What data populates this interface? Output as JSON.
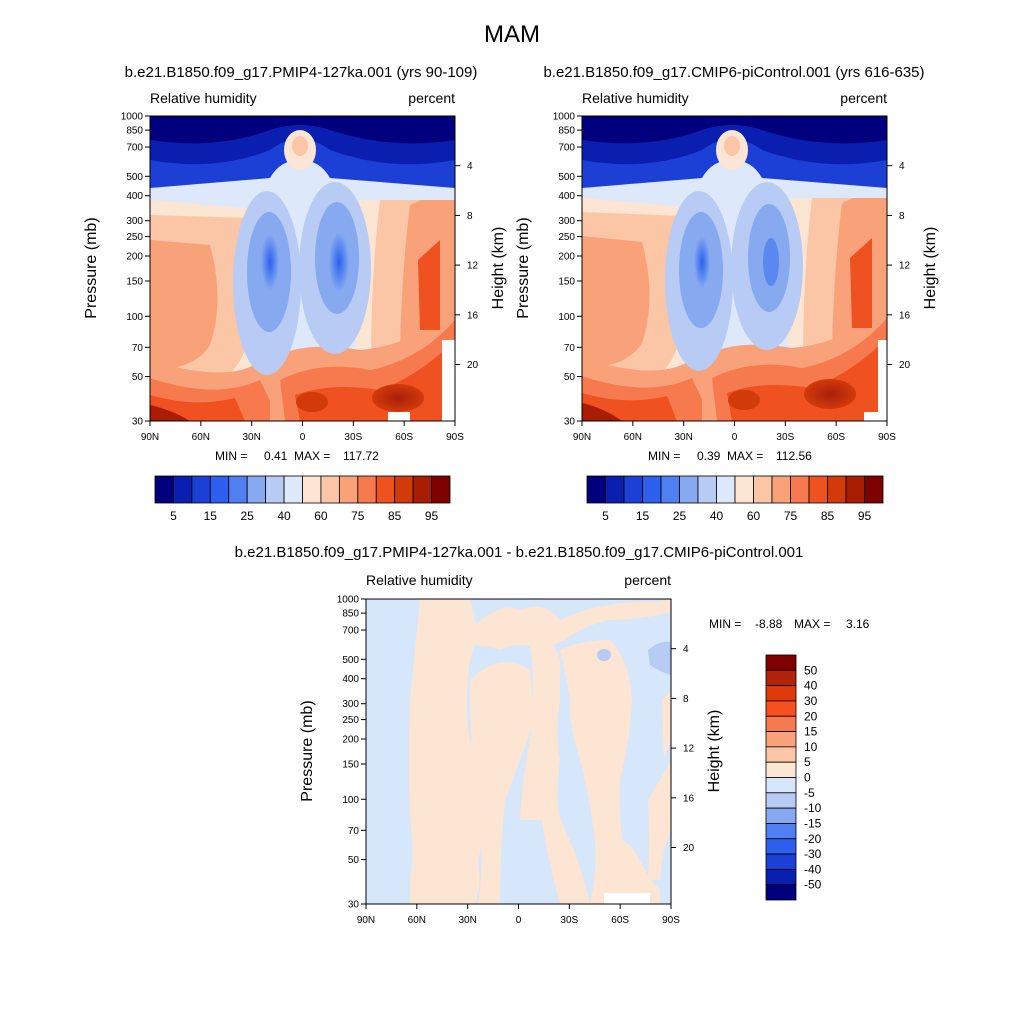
{
  "figure_title": "MAM",
  "chart_data": [
    {
      "type": "heatmap",
      "id": "panel-127ka",
      "title": "b.e21.B1850.f09_g17.PMIP4-127ka.001 (yrs 90-109)",
      "left_label": "Relative humidity",
      "right_label": "percent",
      "ylabel": "Pressure (mb)",
      "ylabel_right": "Height (km)",
      "x_ticks": [
        "90N",
        "60N",
        "30N",
        "0",
        "30S",
        "60S",
        "90S"
      ],
      "y_ticks": [
        "30",
        "50",
        "70",
        "100",
        "150",
        "200",
        "250",
        "300",
        "400",
        "500",
        "700",
        "850",
        "1000"
      ],
      "y_ticks_right": [
        "20",
        "16",
        "12",
        "8",
        "4"
      ],
      "ylim": [
        1000,
        30
      ],
      "yscale": "log",
      "stats": {
        "min_label": "MIN =",
        "min_value": "0.41",
        "max_label": "MAX =",
        "max_value": "117.72"
      },
      "colorbar": {
        "orientation": "horizontal",
        "labels": [
          "5",
          "15",
          "25",
          "40",
          "60",
          "75",
          "85",
          "95"
        ],
        "colors": [
          "#00007f",
          "#0a1fb0",
          "#1c3fd6",
          "#2e5fef",
          "#4f7ff0",
          "#86a9f0",
          "#b7cbf4",
          "#dde8fa",
          "#fde5d3",
          "#fbc6a6",
          "#f9a27a",
          "#f77a4e",
          "#ef5120",
          "#d23a0a",
          "#a91d05",
          "#7f0000"
        ]
      }
    },
    {
      "type": "heatmap",
      "id": "panel-picontrol",
      "title": "b.e21.B1850.f09_g17.CMIP6-piControl.001 (yrs 616-635)",
      "left_label": "Relative humidity",
      "right_label": "percent",
      "ylabel": "Pressure (mb)",
      "ylabel_right": "Height (km)",
      "x_ticks": [
        "90N",
        "60N",
        "30N",
        "0",
        "30S",
        "60S",
        "90S"
      ],
      "y_ticks": [
        "30",
        "50",
        "70",
        "100",
        "150",
        "200",
        "250",
        "300",
        "400",
        "500",
        "700",
        "850",
        "1000"
      ],
      "y_ticks_right": [
        "20",
        "16",
        "12",
        "8",
        "4"
      ],
      "ylim": [
        1000,
        30
      ],
      "yscale": "log",
      "stats": {
        "min_label": "MIN =",
        "min_value": "0.39",
        "max_label": "MAX =",
        "max_value": "112.56"
      },
      "colorbar": {
        "orientation": "horizontal",
        "labels": [
          "5",
          "15",
          "25",
          "40",
          "60",
          "75",
          "85",
          "95"
        ],
        "colors": [
          "#00007f",
          "#0a1fb0",
          "#1c3fd6",
          "#2e5fef",
          "#4f7ff0",
          "#86a9f0",
          "#b7cbf4",
          "#dde8fa",
          "#fde5d3",
          "#fbc6a6",
          "#f9a27a",
          "#f77a4e",
          "#ef5120",
          "#d23a0a",
          "#a91d05",
          "#7f0000"
        ]
      }
    },
    {
      "type": "heatmap",
      "id": "panel-difference",
      "title": "b.e21.B1850.f09_g17.PMIP4-127ka.001 - b.e21.B1850.f09_g17.CMIP6-piControl.001",
      "left_label": "Relative humidity",
      "right_label": "percent",
      "ylabel": "Pressure (mb)",
      "ylabel_right": "Height (km)",
      "x_ticks": [
        "90N",
        "60N",
        "30N",
        "0",
        "30S",
        "60S",
        "90S"
      ],
      "y_ticks": [
        "30",
        "50",
        "70",
        "100",
        "150",
        "200",
        "250",
        "300",
        "400",
        "500",
        "700",
        "850",
        "1000"
      ],
      "y_ticks_right": [
        "20",
        "16",
        "12",
        "8",
        "4"
      ],
      "ylim": [
        1000,
        30
      ],
      "yscale": "log",
      "stats": {
        "min_label": "MIN =",
        "min_value": "-8.88",
        "max_label": "MAX =",
        "max_value": "3.16"
      },
      "colorbar": {
        "orientation": "vertical",
        "labels": [
          "50",
          "40",
          "30",
          "20",
          "15",
          "10",
          "5",
          "0",
          "-5",
          "-10",
          "-15",
          "-20",
          "-30",
          "-40",
          "-50"
        ],
        "colors": [
          "#7f0000",
          "#b3230a",
          "#e03a0c",
          "#f6501e",
          "#f77a4e",
          "#f9a27a",
          "#fbc6a6",
          "#fde5d3",
          "#d6e6fb",
          "#b7cbf4",
          "#86a9f0",
          "#4f7ff0",
          "#2e5fef",
          "#1c3fd6",
          "#0a1fb0",
          "#00007f"
        ]
      }
    }
  ]
}
